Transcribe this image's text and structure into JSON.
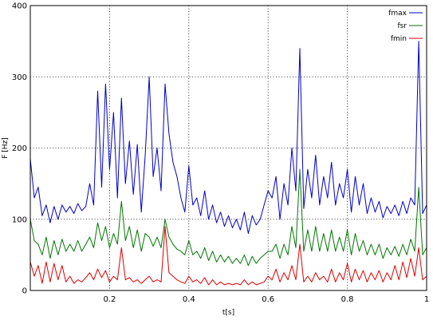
{
  "chart_data": {
    "type": "line",
    "xlabel": "t[s]",
    "ylabel": "F [Hz]",
    "xlim": [
      0,
      1
    ],
    "ylim": [
      0,
      400
    ],
    "xticks": [
      "0.2",
      "0.4",
      "0.6",
      "0.8",
      "1"
    ],
    "yticks": [
      "0",
      "100",
      "200",
      "300",
      "400"
    ],
    "grid": true,
    "legend_position": "top-right",
    "series": [
      {
        "name": "fmax",
        "color": "#0000cc",
        "x": [
          0,
          0.01,
          0.02,
          0.03,
          0.04,
          0.05,
          0.06,
          0.07,
          0.08,
          0.09,
          0.1,
          0.11,
          0.12,
          0.13,
          0.14,
          0.15,
          0.16,
          0.17,
          0.18,
          0.19,
          0.2,
          0.21,
          0.22,
          0.23,
          0.24,
          0.25,
          0.26,
          0.27,
          0.28,
          0.29,
          0.3,
          0.31,
          0.32,
          0.33,
          0.34,
          0.35,
          0.36,
          0.37,
          0.38,
          0.39,
          0.4,
          0.41,
          0.42,
          0.43,
          0.44,
          0.45,
          0.46,
          0.47,
          0.48,
          0.49,
          0.5,
          0.51,
          0.52,
          0.53,
          0.54,
          0.55,
          0.56,
          0.57,
          0.58,
          0.59,
          0.6,
          0.61,
          0.62,
          0.63,
          0.64,
          0.65,
          0.66,
          0.67,
          0.68,
          0.69,
          0.7,
          0.71,
          0.72,
          0.73,
          0.74,
          0.75,
          0.76,
          0.77,
          0.78,
          0.79,
          0.8,
          0.81,
          0.82,
          0.83,
          0.84,
          0.85,
          0.86,
          0.87,
          0.88,
          0.89,
          0.9,
          0.91,
          0.92,
          0.93,
          0.94,
          0.95,
          0.96,
          0.97,
          0.98,
          0.99,
          1.0
        ],
        "values": [
          185,
          130,
          145,
          105,
          120,
          95,
          118,
          100,
          120,
          110,
          118,
          108,
          122,
          112,
          118,
          150,
          120,
          280,
          145,
          290,
          170,
          250,
          130,
          270,
          150,
          210,
          135,
          205,
          110,
          190,
          300,
          160,
          200,
          140,
          290,
          220,
          180,
          160,
          130,
          110,
          175,
          120,
          130,
          105,
          140,
          100,
          120,
          95,
          110,
          90,
          105,
          88,
          100,
          85,
          110,
          80,
          105,
          92,
          100,
          120,
          140,
          130,
          160,
          100,
          150,
          120,
          200,
          140,
          340,
          115,
          170,
          130,
          190,
          120,
          160,
          130,
          180,
          120,
          150,
          130,
          170,
          110,
          160,
          120,
          150,
          108,
          130,
          110,
          125,
          102,
          118,
          108,
          120,
          105,
          125,
          108,
          130,
          120,
          350,
          108,
          120
        ]
      },
      {
        "name": "fsr",
        "color": "#007700",
        "x": [
          0,
          0.01,
          0.02,
          0.03,
          0.04,
          0.05,
          0.06,
          0.07,
          0.08,
          0.09,
          0.1,
          0.11,
          0.12,
          0.13,
          0.14,
          0.15,
          0.16,
          0.17,
          0.18,
          0.19,
          0.2,
          0.21,
          0.22,
          0.23,
          0.24,
          0.25,
          0.26,
          0.27,
          0.28,
          0.29,
          0.3,
          0.31,
          0.32,
          0.33,
          0.34,
          0.35,
          0.36,
          0.37,
          0.38,
          0.39,
          0.4,
          0.41,
          0.42,
          0.43,
          0.44,
          0.45,
          0.46,
          0.47,
          0.48,
          0.49,
          0.5,
          0.51,
          0.52,
          0.53,
          0.54,
          0.55,
          0.56,
          0.57,
          0.58,
          0.59,
          0.6,
          0.61,
          0.62,
          0.63,
          0.64,
          0.65,
          0.66,
          0.67,
          0.68,
          0.69,
          0.7,
          0.71,
          0.72,
          0.73,
          0.74,
          0.75,
          0.76,
          0.77,
          0.78,
          0.79,
          0.8,
          0.81,
          0.82,
          0.83,
          0.84,
          0.85,
          0.86,
          0.87,
          0.88,
          0.89,
          0.9,
          0.91,
          0.92,
          0.93,
          0.94,
          0.95,
          0.96,
          0.97,
          0.98,
          0.99,
          1.0
        ],
        "values": [
          100,
          70,
          65,
          50,
          75,
          45,
          70,
          50,
          72,
          55,
          65,
          55,
          70,
          55,
          65,
          75,
          60,
          95,
          70,
          90,
          60,
          80,
          65,
          125,
          70,
          90,
          60,
          85,
          55,
          80,
          75,
          62,
          75,
          60,
          100,
          75,
          65,
          58,
          55,
          50,
          70,
          50,
          55,
          45,
          60,
          42,
          55,
          40,
          50,
          40,
          48,
          38,
          45,
          38,
          50,
          35,
          48,
          38,
          45,
          50,
          55,
          55,
          65,
          45,
          65,
          50,
          90,
          60,
          170,
          55,
          85,
          55,
          90,
          55,
          80,
          55,
          85,
          55,
          75,
          55,
          85,
          50,
          80,
          55,
          70,
          50,
          65,
          50,
          65,
          45,
          60,
          50,
          62,
          48,
          65,
          50,
          72,
          55,
          145,
          50,
          60
        ]
      },
      {
        "name": "fmin",
        "color": "#dd0000",
        "x": [
          0,
          0.01,
          0.02,
          0.03,
          0.04,
          0.05,
          0.06,
          0.07,
          0.08,
          0.09,
          0.1,
          0.11,
          0.12,
          0.13,
          0.14,
          0.15,
          0.16,
          0.17,
          0.18,
          0.19,
          0.2,
          0.21,
          0.22,
          0.23,
          0.24,
          0.25,
          0.26,
          0.27,
          0.28,
          0.29,
          0.3,
          0.31,
          0.32,
          0.33,
          0.34,
          0.35,
          0.36,
          0.37,
          0.38,
          0.39,
          0.4,
          0.41,
          0.42,
          0.43,
          0.44,
          0.45,
          0.46,
          0.47,
          0.48,
          0.49,
          0.5,
          0.51,
          0.52,
          0.53,
          0.54,
          0.55,
          0.56,
          0.57,
          0.58,
          0.59,
          0.6,
          0.61,
          0.62,
          0.63,
          0.64,
          0.65,
          0.66,
          0.67,
          0.68,
          0.69,
          0.7,
          0.71,
          0.72,
          0.73,
          0.74,
          0.75,
          0.76,
          0.77,
          0.78,
          0.79,
          0.8,
          0.81,
          0.82,
          0.83,
          0.84,
          0.85,
          0.86,
          0.87,
          0.88,
          0.89,
          0.9,
          0.91,
          0.92,
          0.93,
          0.94,
          0.95,
          0.96,
          0.97,
          0.98,
          0.99,
          1.0
        ],
        "values": [
          40,
          20,
          35,
          10,
          40,
          12,
          38,
          15,
          35,
          12,
          20,
          10,
          15,
          12,
          18,
          25,
          15,
          30,
          18,
          28,
          12,
          20,
          15,
          60,
          15,
          18,
          12,
          15,
          10,
          15,
          20,
          12,
          15,
          12,
          90,
          25,
          20,
          15,
          12,
          10,
          20,
          12,
          15,
          10,
          18,
          8,
          15,
          8,
          12,
          8,
          10,
          8,
          10,
          8,
          15,
          8,
          12,
          8,
          10,
          12,
          20,
          15,
          30,
          12,
          25,
          15,
          35,
          15,
          65,
          12,
          20,
          12,
          25,
          15,
          20,
          12,
          30,
          12,
          25,
          15,
          38,
          12,
          30,
          15,
          28,
          12,
          25,
          15,
          28,
          12,
          25,
          15,
          35,
          15,
          40,
          18,
          45,
          20,
          60,
          15,
          20
        ]
      }
    ]
  }
}
